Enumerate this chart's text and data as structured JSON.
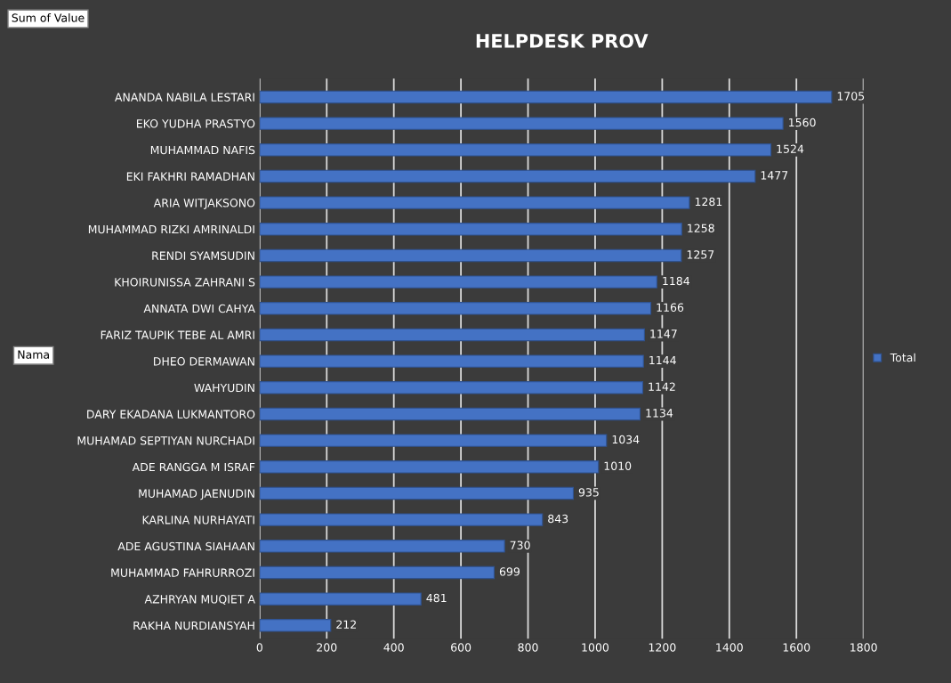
{
  "chart_data": {
    "type": "bar",
    "orientation": "horizontal",
    "title": "HELPDESK PROV",
    "ylabel": "Nama",
    "annotations": [
      "Sum of Value"
    ],
    "categories": [
      "ANANDA NABILA LESTARI",
      "EKO YUDHA PRASTYO",
      "MUHAMMAD NAFIS",
      "EKI FAKHRI RAMADHAN",
      "ARIA WITJAKSONO",
      "MUHAMMAD RIZKI AMRINALDI",
      "RENDI SYAMSUDIN",
      "KHOIRUNISSA ZAHRANI S",
      "ANNATA DWI CAHYA",
      "FARIZ TAUPIK TEBE AL AMRI",
      "DHEO DERMAWAN",
      "WAHYUDIN",
      "DARY EKADANA LUKMANTORO",
      "MUHAMAD SEPTIYAN NURCHADI",
      "ADE RANGGA M ISRAF",
      "MUHAMAD JAENUDIN",
      "KARLINA NURHAYATI",
      "ADE AGUSTINA SIAHAAN",
      "MUHAMMAD FAHRURROZI",
      "AZHRYAN MUQIET A",
      "RAKHA NURDIANSYAH"
    ],
    "series": [
      {
        "name": "Total",
        "color": "#4472c4",
        "values": [
          1705,
          1560,
          1524,
          1477,
          1281,
          1258,
          1257,
          1184,
          1166,
          1147,
          1144,
          1142,
          1134,
          1034,
          1010,
          935,
          843,
          730,
          699,
          481,
          212
        ]
      }
    ],
    "xlim": [
      0,
      1800
    ],
    "xticks": [
      0,
      200,
      400,
      600,
      800,
      1000,
      1200,
      1400,
      1600,
      1800
    ],
    "grid": "x",
    "legend": "right",
    "data_labels": true
  }
}
